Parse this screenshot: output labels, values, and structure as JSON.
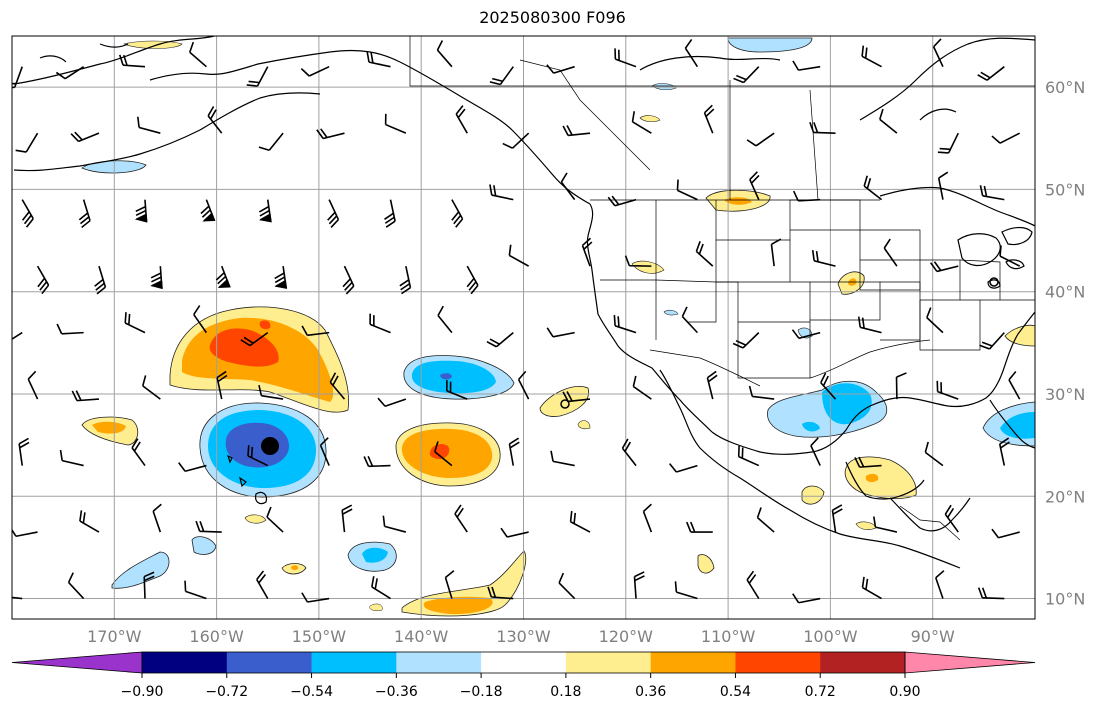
{
  "title": "2025080300 F096",
  "map": {
    "projection": "PlateCarree",
    "extent": {
      "lon_min": -180,
      "lon_max": -80,
      "lat_min": 8,
      "lat_max": 65
    },
    "latitude_labels": [
      "10°N",
      "20°N",
      "30°N",
      "40°N",
      "50°N",
      "60°N"
    ],
    "latitude_values": [
      10,
      20,
      30,
      40,
      50,
      60
    ],
    "longitude_labels": [
      "170°W",
      "160°W",
      "150°W",
      "140°W",
      "130°W",
      "120°W",
      "110°W",
      "100°W",
      "90°W"
    ],
    "longitude_values": [
      -170,
      -160,
      -150,
      -140,
      -130,
      -120,
      -110,
      -100,
      -90
    ],
    "gridline_color": "#a0a0a0",
    "storm_marker": {
      "lon": -155.3,
      "lat": 25.2,
      "symbol": "filled circle"
    },
    "anomaly_regions": [
      {
        "name": "positive-anomaly-central-pacific",
        "center_lon": -152,
        "center_lat": 34.5,
        "peak": 0.72
      },
      {
        "name": "negative-anomaly-near-hawaii",
        "center_lon": -154,
        "center_lat": 25.5,
        "peak": -0.72
      },
      {
        "name": "positive-anomaly-east-pacific",
        "center_lon": -137,
        "center_lat": 24.5,
        "peak": 0.54
      },
      {
        "name": "negative-anomaly-east-pacific-north",
        "center_lon": -138,
        "center_lat": 30.5,
        "peak": -0.54
      },
      {
        "name": "negative-anomaly-gulf-coast",
        "center_lon": -96,
        "center_lat": 28.5,
        "peak": -0.54
      },
      {
        "name": "negative-anomaly-florida",
        "center_lon": -82,
        "center_lat": 26.5,
        "peak": -0.54
      },
      {
        "name": "positive-anomaly-gulf-of-mexico",
        "center_lon": -94,
        "center_lat": 22,
        "peak": 0.36
      },
      {
        "name": "positive-anomaly-low-latitude-band",
        "center_lon": -135,
        "center_lat": 9.5,
        "peak": 0.54
      }
    ]
  },
  "colorbar": {
    "tick_labels": [
      "−0.90",
      "−0.72",
      "−0.54",
      "−0.36",
      "−0.18",
      "0.18",
      "0.36",
      "0.54",
      "0.72",
      "0.90"
    ],
    "tick_values": [
      -0.9,
      -0.72,
      -0.54,
      -0.36,
      -0.18,
      0.18,
      0.36,
      0.54,
      0.72,
      0.9
    ],
    "colors": [
      "#9933cc",
      "#000080",
      "#3a5fcd",
      "#00bfff",
      "#b0e2ff",
      "#ffffff",
      "#ffee90",
      "#ffa500",
      "#ff4500",
      "#b22222",
      "#ff88aa"
    ],
    "extend": "both"
  }
}
